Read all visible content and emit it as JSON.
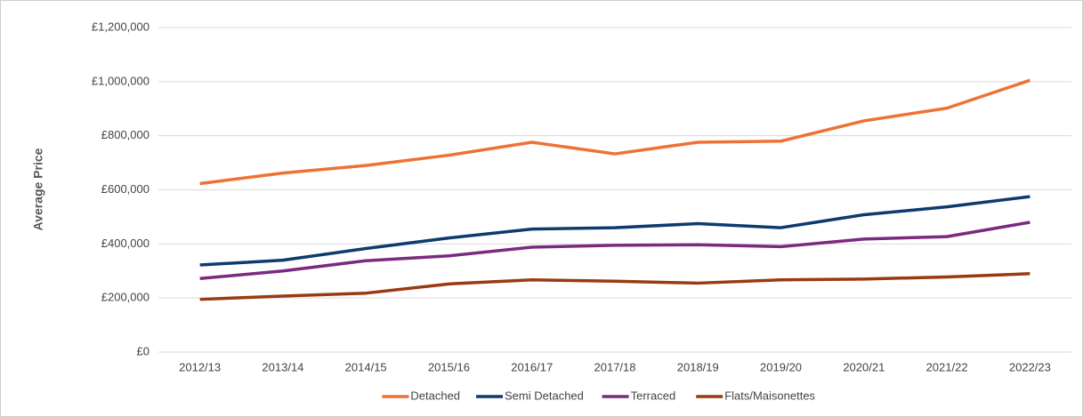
{
  "chart_data": {
    "type": "line",
    "ylabel": "Average Price",
    "categories": [
      "2012/13",
      "2013/14",
      "2014/15",
      "2015/16",
      "2016/17",
      "2017/18",
      "2018/19",
      "2019/20",
      "2020/21",
      "2021/22",
      "2022/23"
    ],
    "series": [
      {
        "name": "Detached",
        "color": "#ee7233",
        "values": [
          623000,
          662000,
          690000,
          728000,
          776000,
          733000,
          776000,
          780000,
          855000,
          902000,
          1005000
        ]
      },
      {
        "name": "Semi Detached",
        "color": "#0d3b6e",
        "values": [
          322000,
          340000,
          383000,
          422000,
          455000,
          460000,
          475000,
          460000,
          508000,
          537000,
          575000
        ]
      },
      {
        "name": "Terraced",
        "color": "#7a2a80",
        "values": [
          272000,
          300000,
          338000,
          356000,
          388000,
          395000,
          397000,
          390000,
          418000,
          427000,
          480000
        ]
      },
      {
        "name": "Flats/Maisonettes",
        "color": "#9b3a10",
        "values": [
          195000,
          207000,
          218000,
          252000,
          267000,
          262000,
          255000,
          267000,
          270000,
          278000,
          290000
        ]
      }
    ],
    "ylim": [
      0,
      1200000
    ],
    "yticks": [
      {
        "value": 0,
        "label": "£0"
      },
      {
        "value": 200000,
        "label": "£200,000"
      },
      {
        "value": 400000,
        "label": "£400,000"
      },
      {
        "value": 600000,
        "label": "£600,000"
      },
      {
        "value": 800000,
        "label": "£800,000"
      },
      {
        "value": 1000000,
        "label": "£1,000,000"
      },
      {
        "value": 1200000,
        "label": "£1,200,000"
      }
    ],
    "grid": true,
    "legend": "bottom"
  }
}
